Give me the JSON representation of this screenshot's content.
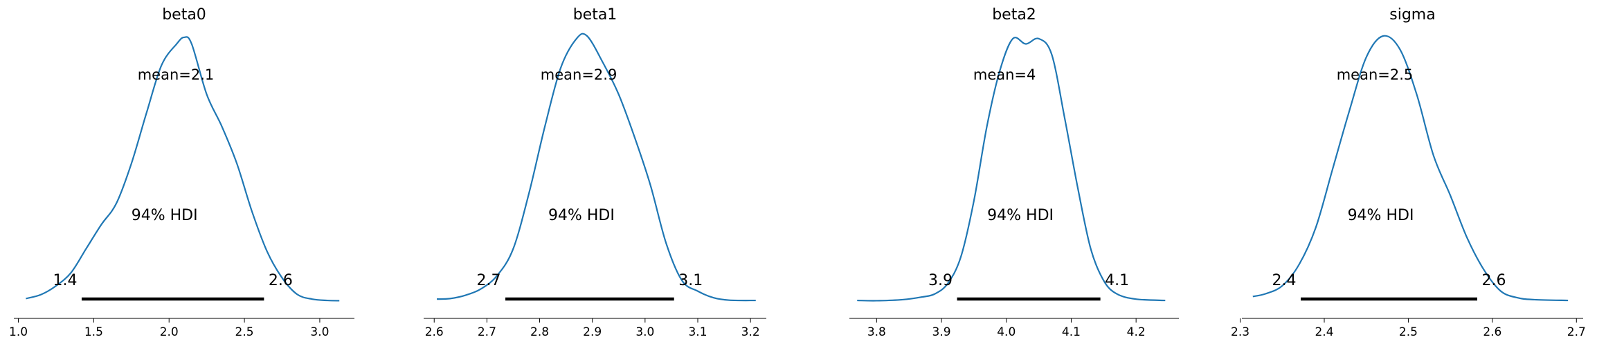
{
  "chart_data": [
    {
      "type": "line",
      "title": "beta0",
      "mean_label": "mean=2.1",
      "hdi_label": "94% HDI",
      "hdi": [
        1.42,
        2.63
      ],
      "hdi_low_label": "1.4",
      "hdi_high_label": "2.6",
      "xlim": [
        0.97,
        3.23
      ],
      "ylim": [
        0,
        1
      ],
      "xticks": [
        1.0,
        1.5,
        2.0,
        2.5,
        3.0
      ],
      "xtick_labels": [
        "1.0",
        "1.5",
        "2.0",
        "2.5",
        "3.0"
      ],
      "x": [
        1.05,
        1.15,
        1.25,
        1.35,
        1.45,
        1.55,
        1.65,
        1.75,
        1.85,
        1.95,
        2.05,
        2.1,
        2.15,
        2.25,
        2.35,
        2.45,
        2.55,
        2.65,
        2.75,
        2.85,
        2.95,
        3.05,
        3.13
      ],
      "y": [
        0.012,
        0.027,
        0.06,
        0.11,
        0.2,
        0.29,
        0.37,
        0.52,
        0.71,
        0.89,
        0.97,
        0.995,
        0.97,
        0.78,
        0.66,
        0.52,
        0.34,
        0.19,
        0.09,
        0.028,
        0.01,
        0.005,
        0.004
      ],
      "color": "#1f77b4"
    },
    {
      "type": "line",
      "title": "beta1",
      "mean_label": "mean=2.9",
      "hdi_label": "94% HDI",
      "hdi": [
        2.735,
        3.055
      ],
      "hdi_low_label": "2.7",
      "hdi_high_label": "3.1",
      "xlim": [
        2.58,
        3.23
      ],
      "ylim": [
        0,
        1
      ],
      "xticks": [
        2.6,
        2.7,
        2.8,
        2.9,
        3.0,
        3.1,
        3.2
      ],
      "xtick_labels": [
        "2.6",
        "2.7",
        "2.8",
        "2.9",
        "3.0",
        "3.1",
        "3.2"
      ],
      "x": [
        2.605,
        2.63,
        2.66,
        2.69,
        2.72,
        2.75,
        2.78,
        2.81,
        2.84,
        2.87,
        2.89,
        2.92,
        2.95,
        2.98,
        3.01,
        3.04,
        3.07,
        3.1,
        3.13,
        3.16,
        3.21
      ],
      "y": [
        0.01,
        0.012,
        0.025,
        0.05,
        0.1,
        0.2,
        0.41,
        0.66,
        0.88,
        0.99,
        1.0,
        0.9,
        0.78,
        0.62,
        0.44,
        0.22,
        0.08,
        0.04,
        0.015,
        0.006,
        0.005
      ],
      "color": "#1f77b4"
    },
    {
      "type": "line",
      "title": "beta2",
      "mean_label": "mean=4",
      "hdi_label": "94% HDI",
      "hdi": [
        3.924,
        4.145
      ],
      "hdi_low_label": "3.9",
      "hdi_high_label": "4.1",
      "xlim": [
        3.758,
        4.266
      ],
      "ylim": [
        0,
        1
      ],
      "xticks": [
        3.8,
        3.9,
        4.0,
        4.1,
        4.2
      ],
      "xtick_labels": [
        "3.8",
        "3.9",
        "4.0",
        "4.1",
        "4.2"
      ],
      "x": [
        3.77,
        3.8,
        3.84,
        3.87,
        3.89,
        3.91,
        3.93,
        3.95,
        3.97,
        3.99,
        4.01,
        4.03,
        4.05,
        4.07,
        4.09,
        4.11,
        4.13,
        4.15,
        4.17,
        4.2,
        4.245
      ],
      "y": [
        0.005,
        0.004,
        0.008,
        0.018,
        0.03,
        0.07,
        0.17,
        0.38,
        0.66,
        0.87,
        0.99,
        0.97,
        0.99,
        0.93,
        0.69,
        0.43,
        0.2,
        0.08,
        0.03,
        0.01,
        0.005
      ],
      "color": "#1f77b4"
    },
    {
      "type": "line",
      "title": "sigma",
      "mean_label": "mean=2.5",
      "hdi_label": "94% HDI",
      "hdi": [
        2.372,
        2.582
      ],
      "hdi_low_label": "2.4",
      "hdi_high_label": "2.6",
      "xlim": [
        2.302,
        2.708
      ],
      "ylim": [
        0,
        1
      ],
      "xticks": [
        2.3,
        2.4,
        2.5,
        2.6,
        2.7
      ],
      "xtick_labels": [
        "2.3",
        "2.4",
        "2.5",
        "2.6",
        "2.7"
      ],
      "x": [
        2.315,
        2.33,
        2.35,
        2.37,
        2.39,
        2.41,
        2.43,
        2.45,
        2.47,
        2.49,
        2.51,
        2.53,
        2.55,
        2.57,
        2.59,
        2.61,
        2.63,
        2.65,
        2.69
      ],
      "y": [
        0.02,
        0.03,
        0.06,
        0.14,
        0.28,
        0.5,
        0.72,
        0.92,
        1.0,
        0.95,
        0.78,
        0.55,
        0.4,
        0.24,
        0.12,
        0.04,
        0.015,
        0.008,
        0.005
      ],
      "color": "#1f77b4"
    }
  ]
}
